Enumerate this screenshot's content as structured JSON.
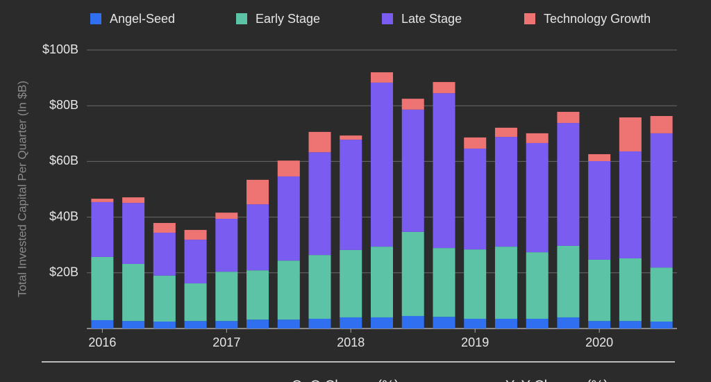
{
  "chart_data": {
    "type": "stacked_bar",
    "y_label": "Total Invested Capital Per Quarter (In $B)",
    "categories": [
      "2016",
      null,
      null,
      null,
      "2017",
      null,
      null,
      null,
      "2018",
      null,
      null,
      null,
      "2019",
      null,
      null,
      null,
      "2020",
      null,
      null
    ],
    "series": [
      {
        "name": "Angel-Seed",
        "color": "#2f6ff0",
        "values": [
          3,
          2.7,
          2.5,
          2.7,
          2.7,
          3.2,
          3.2,
          3.5,
          4,
          4,
          4.5,
          4.2,
          3.5,
          3.5,
          3.5,
          4,
          2.7,
          2.7,
          2.5
        ]
      },
      {
        "name": "Early Stage",
        "color": "#5cc3a6",
        "values": [
          22.7,
          20.5,
          16.5,
          13.5,
          17.7,
          17.7,
          21.2,
          22.9,
          24.2,
          25.4,
          30.2,
          24.7,
          24.9,
          25.9,
          23.9,
          25.7,
          22,
          22.5,
          19.4
        ]
      },
      {
        "name": "Late Stage",
        "color": "#7b5cf0",
        "values": [
          19.7,
          21.9,
          15.4,
          15.7,
          19,
          23.7,
          30.2,
          36.9,
          39.6,
          58.9,
          43.9,
          55.6,
          36.2,
          39.4,
          39.2,
          44.1,
          35.4,
          38.4,
          48.2
        ]
      },
      {
        "name": "Technology Growth",
        "color": "#ee7373",
        "values": [
          1.2,
          2,
          3.5,
          3.5,
          2.2,
          8.8,
          5.7,
          7.3,
          1.5,
          3.7,
          3.9,
          4,
          4,
          3.3,
          3.5,
          4,
          2.5,
          12.2,
          6.2
        ]
      }
    ],
    "ylim": [
      0,
      100
    ],
    "yticks": [
      {
        "value": 20,
        "label": "$20B"
      },
      {
        "value": 40,
        "label": "$40B"
      },
      {
        "value": 60,
        "label": "$60B"
      },
      {
        "value": 80,
        "label": "$80B"
      },
      {
        "value": 100,
        "label": "$100B"
      }
    ],
    "grid": true,
    "annotations": [
      "QoQ Change (%)",
      "YoY Change (%)"
    ]
  }
}
